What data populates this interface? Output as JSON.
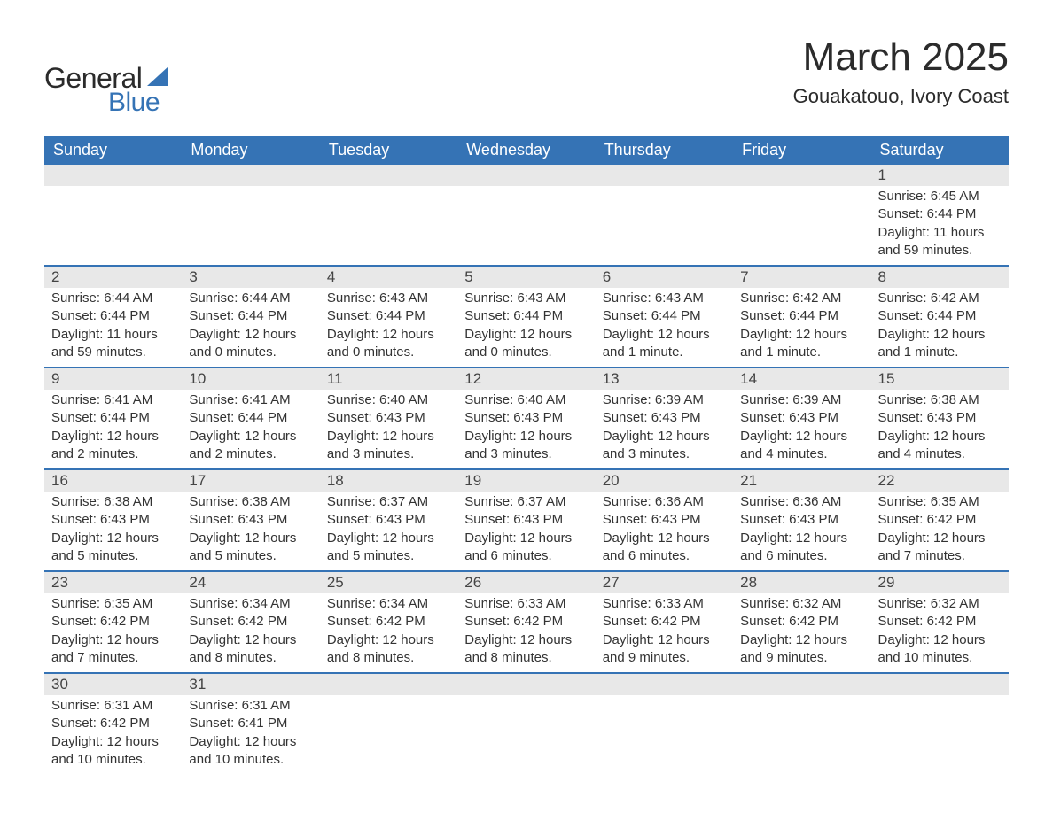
{
  "logo": {
    "text_general": "General",
    "text_blue": "Blue",
    "shape_color": "#3573b5"
  },
  "title": "March 2025",
  "subtitle": "Gouakatouo, Ivory Coast",
  "colors": {
    "header_bg": "#3573b5",
    "header_text": "#ffffff",
    "daynum_bg": "#e8e8e8",
    "row_border": "#3573b5",
    "text": "#333333",
    "background": "#ffffff"
  },
  "layout": {
    "columns": 7,
    "rows": 6,
    "font_family": "Arial",
    "body_font_size": 15,
    "title_font_size": 44,
    "subtitle_font_size": 22,
    "weekday_font_size": 18
  },
  "weekdays": [
    "Sunday",
    "Monday",
    "Tuesday",
    "Wednesday",
    "Thursday",
    "Friday",
    "Saturday"
  ],
  "weeks": [
    [
      null,
      null,
      null,
      null,
      null,
      null,
      {
        "n": "1",
        "sunrise": "6:45 AM",
        "sunset": "6:44 PM",
        "daylight": "11 hours and 59 minutes."
      }
    ],
    [
      {
        "n": "2",
        "sunrise": "6:44 AM",
        "sunset": "6:44 PM",
        "daylight": "11 hours and 59 minutes."
      },
      {
        "n": "3",
        "sunrise": "6:44 AM",
        "sunset": "6:44 PM",
        "daylight": "12 hours and 0 minutes."
      },
      {
        "n": "4",
        "sunrise": "6:43 AM",
        "sunset": "6:44 PM",
        "daylight": "12 hours and 0 minutes."
      },
      {
        "n": "5",
        "sunrise": "6:43 AM",
        "sunset": "6:44 PM",
        "daylight": "12 hours and 0 minutes."
      },
      {
        "n": "6",
        "sunrise": "6:43 AM",
        "sunset": "6:44 PM",
        "daylight": "12 hours and 1 minute."
      },
      {
        "n": "7",
        "sunrise": "6:42 AM",
        "sunset": "6:44 PM",
        "daylight": "12 hours and 1 minute."
      },
      {
        "n": "8",
        "sunrise": "6:42 AM",
        "sunset": "6:44 PM",
        "daylight": "12 hours and 1 minute."
      }
    ],
    [
      {
        "n": "9",
        "sunrise": "6:41 AM",
        "sunset": "6:44 PM",
        "daylight": "12 hours and 2 minutes."
      },
      {
        "n": "10",
        "sunrise": "6:41 AM",
        "sunset": "6:44 PM",
        "daylight": "12 hours and 2 minutes."
      },
      {
        "n": "11",
        "sunrise": "6:40 AM",
        "sunset": "6:43 PM",
        "daylight": "12 hours and 3 minutes."
      },
      {
        "n": "12",
        "sunrise": "6:40 AM",
        "sunset": "6:43 PM",
        "daylight": "12 hours and 3 minutes."
      },
      {
        "n": "13",
        "sunrise": "6:39 AM",
        "sunset": "6:43 PM",
        "daylight": "12 hours and 3 minutes."
      },
      {
        "n": "14",
        "sunrise": "6:39 AM",
        "sunset": "6:43 PM",
        "daylight": "12 hours and 4 minutes."
      },
      {
        "n": "15",
        "sunrise": "6:38 AM",
        "sunset": "6:43 PM",
        "daylight": "12 hours and 4 minutes."
      }
    ],
    [
      {
        "n": "16",
        "sunrise": "6:38 AM",
        "sunset": "6:43 PM",
        "daylight": "12 hours and 5 minutes."
      },
      {
        "n": "17",
        "sunrise": "6:38 AM",
        "sunset": "6:43 PM",
        "daylight": "12 hours and 5 minutes."
      },
      {
        "n": "18",
        "sunrise": "6:37 AM",
        "sunset": "6:43 PM",
        "daylight": "12 hours and 5 minutes."
      },
      {
        "n": "19",
        "sunrise": "6:37 AM",
        "sunset": "6:43 PM",
        "daylight": "12 hours and 6 minutes."
      },
      {
        "n": "20",
        "sunrise": "6:36 AM",
        "sunset": "6:43 PM",
        "daylight": "12 hours and 6 minutes."
      },
      {
        "n": "21",
        "sunrise": "6:36 AM",
        "sunset": "6:43 PM",
        "daylight": "12 hours and 6 minutes."
      },
      {
        "n": "22",
        "sunrise": "6:35 AM",
        "sunset": "6:42 PM",
        "daylight": "12 hours and 7 minutes."
      }
    ],
    [
      {
        "n": "23",
        "sunrise": "6:35 AM",
        "sunset": "6:42 PM",
        "daylight": "12 hours and 7 minutes."
      },
      {
        "n": "24",
        "sunrise": "6:34 AM",
        "sunset": "6:42 PM",
        "daylight": "12 hours and 8 minutes."
      },
      {
        "n": "25",
        "sunrise": "6:34 AM",
        "sunset": "6:42 PM",
        "daylight": "12 hours and 8 minutes."
      },
      {
        "n": "26",
        "sunrise": "6:33 AM",
        "sunset": "6:42 PM",
        "daylight": "12 hours and 8 minutes."
      },
      {
        "n": "27",
        "sunrise": "6:33 AM",
        "sunset": "6:42 PM",
        "daylight": "12 hours and 9 minutes."
      },
      {
        "n": "28",
        "sunrise": "6:32 AM",
        "sunset": "6:42 PM",
        "daylight": "12 hours and 9 minutes."
      },
      {
        "n": "29",
        "sunrise": "6:32 AM",
        "sunset": "6:42 PM",
        "daylight": "12 hours and 10 minutes."
      }
    ],
    [
      {
        "n": "30",
        "sunrise": "6:31 AM",
        "sunset": "6:42 PM",
        "daylight": "12 hours and 10 minutes."
      },
      {
        "n": "31",
        "sunrise": "6:31 AM",
        "sunset": "6:41 PM",
        "daylight": "12 hours and 10 minutes."
      },
      null,
      null,
      null,
      null,
      null
    ]
  ],
  "labels": {
    "sunrise": "Sunrise: ",
    "sunset": "Sunset: ",
    "daylight": "Daylight: "
  }
}
